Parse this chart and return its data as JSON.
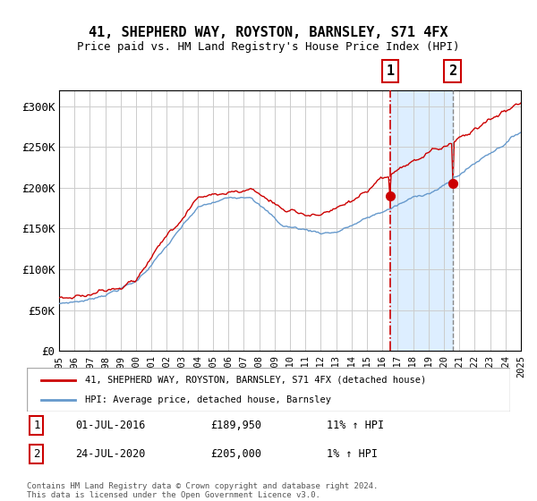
{
  "title": "41, SHEPHERD WAY, ROYSTON, BARNSLEY, S71 4FX",
  "subtitle": "Price paid vs. HM Land Registry's House Price Index (HPI)",
  "legend_line1": "41, SHEPHERD WAY, ROYSTON, BARNSLEY, S71 4FX (detached house)",
  "legend_line2": "HPI: Average price, detached house, Barnsley",
  "annotation1_date": "01-JUL-2016",
  "annotation1_price": "£189,950",
  "annotation1_hpi": "11% ↑ HPI",
  "annotation2_date": "24-JUL-2020",
  "annotation2_price": "£205,000",
  "annotation2_hpi": "1% ↑ HPI",
  "footer": "Contains HM Land Registry data © Crown copyright and database right 2024.\nThis data is licensed under the Open Government Licence v3.0.",
  "red_color": "#cc0000",
  "blue_color": "#6699cc",
  "bg_color": "#ffffff",
  "shade_color": "#ddeeff",
  "grid_color": "#cccccc",
  "ylim": [
    0,
    320000
  ],
  "yticks": [
    0,
    50000,
    100000,
    150000,
    200000,
    250000,
    300000
  ],
  "ytick_labels": [
    "£0",
    "£50K",
    "£100K",
    "£150K",
    "£200K",
    "£250K",
    "£300K"
  ],
  "sale1_year": 2016.5,
  "sale2_year": 2020.56,
  "sale1_value": 189950,
  "sale2_value": 205000,
  "xstart": 1995,
  "xend": 2025
}
